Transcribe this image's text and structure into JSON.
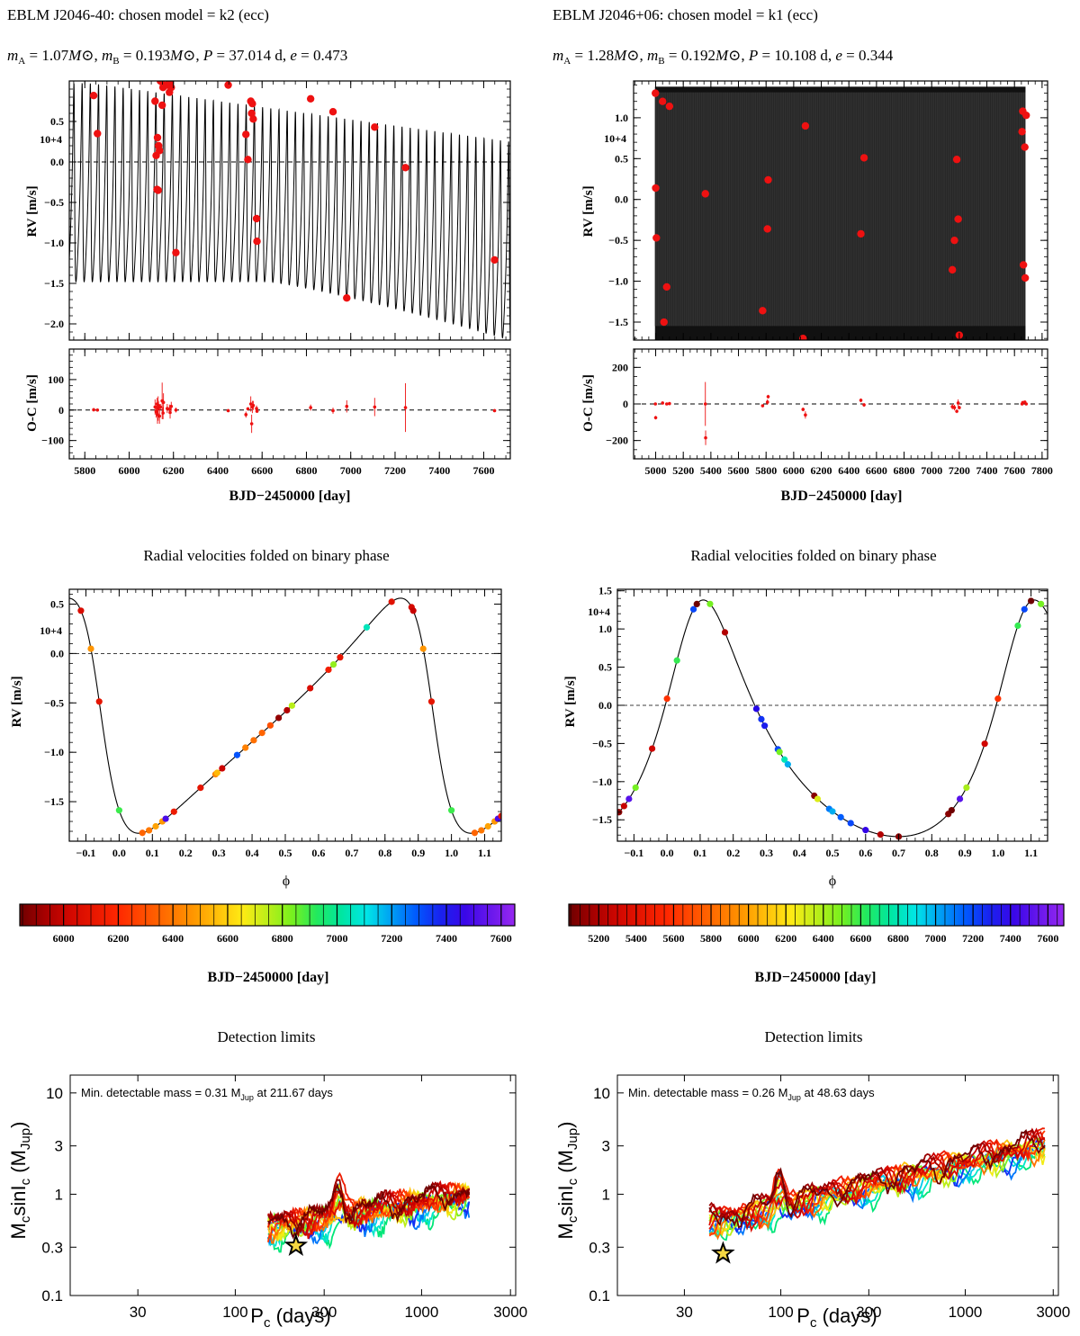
{
  "left": {
    "title": "EBLM J2046-40: chosen model = k2 (ecc)",
    "params": {
      "mA": "1.07",
      "mB": "0.193",
      "P": "37.014 d",
      "e": "0.473"
    },
    "multiplier": "10+4"
  },
  "right": {
    "title": "EBLM J2046+06: chosen model = k1 (ecc)",
    "params": {
      "mA": "1.28",
      "mB": "0.192",
      "P": "10.108 d",
      "e": "0.344"
    },
    "multiplier": "10+4"
  },
  "labels": {
    "rv": "RV [m/s]",
    "oc": "O-C [m/s]",
    "bjd": "BJD−2450000 [day]",
    "phase": "ϕ",
    "fold_title": "Radial velocities folded on binary phase",
    "det_title": "Detection limits",
    "det_y_main": "M",
    "det_y_sub1": "c",
    "det_y_mid": "sinI",
    "det_y_sub2": "c",
    "det_y_paren": "(M",
    "det_y_sub3": "Jup",
    "det_y_end": ")",
    "det_x_main": "P",
    "det_x_sub": "c",
    "det_x_end": " (days)",
    "msun": "M⊙",
    "mA_lbl": "m",
    "mA_sub": "A",
    "mB_sub": "B",
    "P_lbl": "P",
    "e_lbl": "e",
    "min_mass_prefix": "Min. detectable mass = ",
    "min_mass_unit": " M",
    "min_mass_unit_sub": "Jup",
    "min_mass_at": " at "
  },
  "chart_data": [
    {
      "id": "L-rv-time",
      "type": "line",
      "title": "EBLM J2046-40: chosen model = k2 (ecc)",
      "xlabel": "BJD−2450000 [day]",
      "ylabel": "RV [m/s]",
      "y_multiplier": "10+4",
      "xlim": [
        5730,
        7720
      ],
      "ylim": [
        -2.2,
        1.0
      ],
      "xticks": [
        5800,
        6000,
        6200,
        6400,
        6600,
        6800,
        7000,
        7200,
        7400,
        7600
      ],
      "yticks": [
        -2.0,
        -1.5,
        -1.0,
        -0.5,
        0.0,
        0.5
      ],
      "model": {
        "period": 37.014,
        "ecc": 0.473,
        "t0": 5790,
        "max_start": 0.97,
        "max_end": 0.25,
        "min_start": -1.48,
        "min_end": -2.2
      },
      "points": {
        "x": [
          5840,
          5857,
          6117,
          6122,
          6126,
          6128,
          6131,
          6133,
          6137,
          6141,
          6149,
          6153,
          6155,
          6172,
          6182,
          6185,
          6190,
          6211,
          6447,
          6527,
          6536,
          6549,
          6553,
          6556,
          6560,
          6575,
          6577,
          6819,
          6920,
          6982,
          7108,
          7247,
          7649
        ],
        "y": [
          0.82,
          0.35,
          0.75,
          0.08,
          -0.34,
          0.3,
          -0.35,
          0.2,
          0.14,
          1.0,
          0.7,
          0.92,
          0.95,
          0.95,
          0.86,
          0.98,
          0.92,
          -1.12,
          0.95,
          0.34,
          0.03,
          0.75,
          0.6,
          0.72,
          0.53,
          -0.7,
          -0.98,
          0.78,
          0.62,
          -1.68,
          0.43,
          -0.07,
          -1.21
        ]
      }
    },
    {
      "id": "L-oc-time",
      "type": "scatter",
      "ylabel": "O-C [m/s]",
      "xlim": [
        5730,
        7720
      ],
      "ylim": [
        -160,
        200
      ],
      "yticks": [
        -100,
        0,
        100
      ],
      "points": {
        "x": [
          5840,
          5857,
          6117,
          6122,
          6126,
          6128,
          6131,
          6133,
          6137,
          6141,
          6149,
          6153,
          6155,
          6172,
          6182,
          6185,
          6190,
          6211,
          6447,
          6527,
          6536,
          6549,
          6553,
          6556,
          6560,
          6575,
          6577,
          6819,
          6920,
          6982,
          7108,
          7247,
          7649
        ],
        "y": [
          1,
          0,
          10,
          -5,
          20,
          -15,
          5,
          15,
          -20,
          10,
          30,
          -10,
          25,
          5,
          3,
          -8,
          12,
          0,
          -2,
          -15,
          4,
          20,
          -45,
          10,
          15,
          5,
          -4,
          8,
          -2,
          12,
          10,
          8,
          -2
        ],
        "err": [
          5,
          5,
          25,
          20,
          20,
          30,
          40,
          15,
          25,
          10,
          60,
          20,
          30,
          15,
          15,
          20,
          15,
          8,
          5,
          10,
          5,
          25,
          30,
          20,
          15,
          10,
          5,
          10,
          10,
          20,
          30,
          80,
          5
        ]
      }
    },
    {
      "id": "R-rv-time",
      "type": "line",
      "title": "EBLM J2046+06: chosen model = k1 (ecc)",
      "xlabel": "BJD−2450000 [day]",
      "ylabel": "RV [m/s]",
      "y_multiplier": "10+4",
      "xlim": [
        4840,
        7840
      ],
      "ylim": [
        -1.72,
        1.45
      ],
      "xticks": [
        5000,
        5200,
        5400,
        5600,
        5800,
        6000,
        6200,
        6400,
        6600,
        6800,
        7000,
        7200,
        7400,
        7600,
        7800
      ],
      "yticks": [
        -1.5,
        -1.0,
        -0.5,
        0.0,
        0.5,
        1.0
      ],
      "model": {
        "period": 10.108,
        "ecc": 0.344,
        "xmin": 4995,
        "xmax": 7680,
        "max": 1.38,
        "min": -1.72
      },
      "points": {
        "x": [
          4998,
          5000,
          5005,
          5050,
          5060,
          5080,
          5100,
          5360,
          5775,
          5810,
          5815,
          6068,
          6085,
          6487,
          6510,
          7150,
          7165,
          7182,
          7192,
          7200,
          7655,
          7660,
          7665,
          7675,
          7678,
          7685
        ],
        "y": [
          1.3,
          0.14,
          -0.47,
          1.2,
          -1.5,
          -1.07,
          1.14,
          0.07,
          -1.36,
          -0.36,
          0.24,
          -1.7,
          0.9,
          -0.42,
          0.51,
          -0.86,
          -0.5,
          0.49,
          -0.24,
          -1.66,
          0.83,
          1.08,
          -0.8,
          0.64,
          -0.96,
          1.03
        ]
      }
    },
    {
      "id": "R-oc-time",
      "type": "scatter",
      "ylabel": "O-C [m/s]",
      "xlim": [
        4840,
        7840
      ],
      "ylim": [
        -300,
        300
      ],
      "yticks": [
        -200,
        0,
        200
      ],
      "points": {
        "x": [
          4998,
          5000,
          5050,
          5080,
          5100,
          5360,
          5362,
          5775,
          5810,
          5815,
          6068,
          6085,
          6487,
          6510,
          7150,
          7165,
          7182,
          7192,
          7200,
          7655,
          7660,
          7675,
          7685
        ],
        "y": [
          0,
          -75,
          5,
          0,
          2,
          0,
          -185,
          -10,
          10,
          40,
          -30,
          -60,
          20,
          -5,
          -15,
          -20,
          -40,
          5,
          -20,
          0,
          8,
          10,
          0
        ],
        "err": [
          5,
          10,
          5,
          5,
          5,
          120,
          40,
          8,
          15,
          10,
          10,
          20,
          10,
          10,
          15,
          15,
          10,
          20,
          10,
          5,
          5,
          5,
          5
        ]
      }
    },
    {
      "id": "L-rv-phase",
      "type": "line",
      "title": "Radial velocities folded on binary phase",
      "xlabel": "ϕ",
      "ylabel": "RV [m/s]",
      "y_multiplier": "10+4",
      "xlim": [
        -0.15,
        1.15
      ],
      "ylim": [
        -1.9,
        0.65
      ],
      "xticks": [
        -0.1,
        0.0,
        0.1,
        0.2,
        0.3,
        0.4,
        0.5,
        0.6,
        0.7,
        0.8,
        0.9,
        1.0,
        1.1
      ],
      "yticks": [
        -1.5,
        -1.0,
        -0.5,
        0.0,
        0.5
      ],
      "model": {
        "ecc": 0.473,
        "max": 0.56,
        "min": -1.82
      },
      "points": {
        "phase": [
          -0.115,
          -0.085,
          -0.06,
          0.0,
          0.07,
          0.09,
          0.11,
          0.13,
          0.14,
          0.165,
          0.245,
          0.29,
          0.295,
          0.31,
          0.355,
          0.38,
          0.405,
          0.43,
          0.455,
          0.48,
          0.505,
          0.52,
          0.575,
          0.63,
          0.645,
          0.665,
          0.745,
          0.82,
          0.88,
          0.885,
          0.915,
          0.94,
          1.0,
          1.07,
          1.09,
          1.11,
          1.13,
          1.14,
          1.15
        ],
        "t": [
          6050,
          6470,
          6100,
          6900,
          6350,
          6400,
          6500,
          6480,
          7500,
          6130,
          6100,
          6430,
          6550,
          6000,
          7300,
          6420,
          6380,
          6350,
          6300,
          5900,
          5950,
          6750,
          6050,
          6150,
          6800,
          6100,
          7050,
          6080,
          6040,
          5990,
          6470,
          6100,
          6900,
          6350,
          6400,
          6500,
          6480,
          7500,
          6130
        ]
      }
    },
    {
      "id": "R-rv-phase",
      "type": "line",
      "title": "Radial velocities folded on binary phase",
      "xlabel": "ϕ",
      "ylabel": "RV [m/s]",
      "y_multiplier": "10+4",
      "xlim": [
        -0.15,
        1.15
      ],
      "ylim": [
        -1.78,
        1.52
      ],
      "xticks": [
        -0.1,
        0.0,
        0.1,
        0.2,
        0.3,
        0.4,
        0.5,
        0.6,
        0.7,
        0.8,
        0.9,
        1.0,
        1.1
      ],
      "yticks": [
        -1.5,
        -1.0,
        -0.5,
        0.0,
        0.5,
        1.0,
        1.5
      ],
      "model": {
        "ecc": 0.344,
        "max": 1.38,
        "min": -1.72
      },
      "points": {
        "phase": [
          -0.145,
          -0.13,
          -0.115,
          -0.095,
          -0.045,
          0.0,
          0.03,
          0.08,
          0.09,
          0.13,
          0.175,
          0.27,
          0.285,
          0.295,
          0.335,
          0.34,
          0.355,
          0.365,
          0.445,
          0.455,
          0.49,
          0.5,
          0.525,
          0.555,
          0.6,
          0.645,
          0.7,
          0.85,
          0.86,
          0.885,
          0.905,
          0.96,
          1.0,
          1.06,
          1.08,
          1.1,
          1.13
        ],
        "t": [
          5100,
          5250,
          7500,
          6500,
          5300,
          5600,
          6600,
          7200,
          5000,
          6500,
          5200,
          7350,
          7250,
          7300,
          7200,
          6500,
          6800,
          7000,
          5100,
          6300,
          7100,
          7000,
          7150,
          7200,
          7400,
          5200,
          5100,
          5100,
          5000,
          7500,
          6400,
          5300,
          5600,
          6600,
          7200,
          5000,
          6500
        ]
      }
    },
    {
      "id": "L-colorbar",
      "type": "heatmap",
      "xlabel": "BJD−2450000 [day]",
      "range": [
        5840,
        7650
      ],
      "ticks": [
        6000,
        6200,
        6400,
        6600,
        6800,
        7000,
        7200,
        7400,
        7600
      ]
    },
    {
      "id": "R-colorbar",
      "type": "heatmap",
      "xlabel": "BJD−2450000 [day]",
      "range": [
        5040,
        7685
      ],
      "ticks": [
        5200,
        5400,
        5600,
        5800,
        6000,
        6200,
        6400,
        6600,
        6800,
        7000,
        7200,
        7400,
        7600
      ]
    },
    {
      "id": "L-detection",
      "type": "line",
      "title": "Detection limits",
      "xlabel": "Pc (days)",
      "ylabel": "Mc sinIc (MJup)",
      "xscale": "log",
      "yscale": "log",
      "xlim": [
        13,
        3200
      ],
      "ylim": [
        0.1,
        15
      ],
      "xticks": [
        30,
        100,
        300,
        1000,
        3000
      ],
      "yticks": [
        0.1,
        0.3,
        1,
        3,
        10
      ],
      "min_mass": "0.31",
      "min_period": "211.67 days",
      "star": {
        "x": 211.67,
        "y": 0.31
      },
      "curves": {
        "xmin": 150,
        "xmax": 1800,
        "base_start": 0.45,
        "base_end": 0.95,
        "count": 16
      }
    },
    {
      "id": "R-detection",
      "type": "line",
      "title": "Detection limits",
      "xlabel": "Pc (days)",
      "ylabel": "Mc sinIc (MJup)",
      "xscale": "log",
      "yscale": "log",
      "xlim": [
        13,
        3200
      ],
      "ylim": [
        0.1,
        15
      ],
      "xticks": [
        30,
        100,
        300,
        1000,
        3000
      ],
      "yticks": [
        0.1,
        0.3,
        1,
        3,
        10
      ],
      "min_mass": "0.26",
      "min_period": "48.63 days",
      "star": {
        "x": 48.63,
        "y": 0.26
      },
      "curves": {
        "xmin": 41,
        "xmax": 2700,
        "base_start": 0.5,
        "base_end": 3.0,
        "count": 16
      }
    }
  ]
}
